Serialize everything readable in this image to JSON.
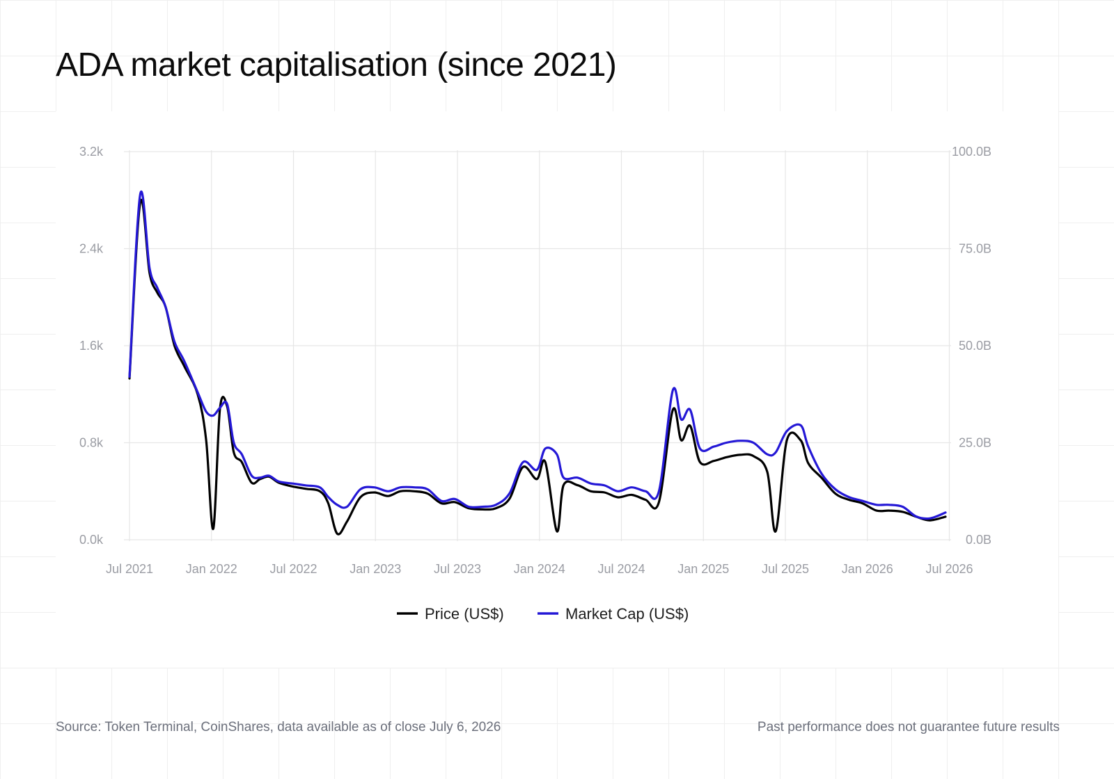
{
  "title": "ADA market capitalisation (since 2021)",
  "footer": {
    "source": "Source: Token Terminal, CoinShares, data available as of close July 6, 2026",
    "disclaimer": "Past performance does not guarantee future results"
  },
  "chart_data": {
    "type": "line",
    "x_tick_labels": [
      "Jul 2021",
      "Jan 2022",
      "Jul 2022",
      "Jan 2023",
      "Jul 2023",
      "Jan 2024",
      "Jul 2024",
      "Jan 2025",
      "Jul 2025",
      "Jan 2026",
      "Jul 2026"
    ],
    "x_range": [
      "2021-07-01",
      "2026-07-06"
    ],
    "y_left": {
      "ticks": [
        "0.0k",
        "0.8k",
        "1.6k",
        "2.4k",
        "3.2k"
      ],
      "range": [
        0,
        3200
      ]
    },
    "y_right": {
      "ticks": [
        "0.0B",
        "25.0B",
        "50.0B",
        "75.0B",
        "100.0B"
      ],
      "range": [
        0,
        100
      ]
    },
    "grid": true,
    "legend_position": "bottom-center",
    "series": [
      {
        "name": "Price (US$)",
        "axis": "left",
        "color": "#000000",
        "points": [
          [
            "2021-07-01",
            1330
          ],
          [
            "2021-07-25",
            2780
          ],
          [
            "2021-08-15",
            2200
          ],
          [
            "2021-09-01",
            2040
          ],
          [
            "2021-09-20",
            1920
          ],
          [
            "2021-10-10",
            1600
          ],
          [
            "2021-11-01",
            1430
          ],
          [
            "2021-12-01",
            1200
          ],
          [
            "2021-12-20",
            820
          ],
          [
            "2022-01-05",
            90
          ],
          [
            "2022-01-20",
            1080
          ],
          [
            "2022-02-05",
            1100
          ],
          [
            "2022-02-20",
            720
          ],
          [
            "2022-03-10",
            640
          ],
          [
            "2022-04-01",
            470
          ],
          [
            "2022-04-20",
            500
          ],
          [
            "2022-05-10",
            520
          ],
          [
            "2022-06-01",
            470
          ],
          [
            "2022-07-01",
            440
          ],
          [
            "2022-08-01",
            420
          ],
          [
            "2022-09-01",
            400
          ],
          [
            "2022-09-20",
            300
          ],
          [
            "2022-10-10",
            50
          ],
          [
            "2022-11-01",
            150
          ],
          [
            "2022-12-01",
            350
          ],
          [
            "2023-01-01",
            390
          ],
          [
            "2023-02-01",
            360
          ],
          [
            "2023-03-01",
            400
          ],
          [
            "2023-04-01",
            400
          ],
          [
            "2023-05-01",
            380
          ],
          [
            "2023-06-01",
            300
          ],
          [
            "2023-07-01",
            310
          ],
          [
            "2023-08-01",
            260
          ],
          [
            "2023-09-01",
            250
          ],
          [
            "2023-10-01",
            260
          ],
          [
            "2023-11-01",
            340
          ],
          [
            "2023-12-01",
            600
          ],
          [
            "2024-01-01",
            500
          ],
          [
            "2024-01-20",
            640
          ],
          [
            "2024-02-15",
            70
          ],
          [
            "2024-03-01",
            450
          ],
          [
            "2024-04-01",
            450
          ],
          [
            "2024-05-01",
            400
          ],
          [
            "2024-06-01",
            390
          ],
          [
            "2024-07-01",
            350
          ],
          [
            "2024-08-01",
            370
          ],
          [
            "2024-09-01",
            330
          ],
          [
            "2024-10-01",
            310
          ],
          [
            "2024-11-01",
            1070
          ],
          [
            "2024-11-20",
            820
          ],
          [
            "2024-12-10",
            940
          ],
          [
            "2025-01-01",
            640
          ],
          [
            "2025-02-01",
            650
          ],
          [
            "2025-03-01",
            680
          ],
          [
            "2025-04-01",
            700
          ],
          [
            "2025-05-01",
            690
          ],
          [
            "2025-06-01",
            560
          ],
          [
            "2025-06-20",
            70
          ],
          [
            "2025-07-15",
            820
          ],
          [
            "2025-08-15",
            820
          ],
          [
            "2025-09-01",
            630
          ],
          [
            "2025-10-01",
            510
          ],
          [
            "2025-11-01",
            380
          ],
          [
            "2025-12-01",
            330
          ],
          [
            "2026-01-01",
            300
          ],
          [
            "2026-02-01",
            240
          ],
          [
            "2026-03-01",
            240
          ],
          [
            "2026-04-01",
            230
          ],
          [
            "2026-05-01",
            190
          ],
          [
            "2026-06-01",
            160
          ],
          [
            "2026-07-06",
            190
          ]
        ]
      },
      {
        "name": "Market Cap (US$)",
        "axis": "right",
        "color": "#2418d6",
        "points": [
          [
            "2021-07-01",
            42
          ],
          [
            "2021-07-25",
            89
          ],
          [
            "2021-08-15",
            70
          ],
          [
            "2021-09-01",
            65
          ],
          [
            "2021-09-20",
            60
          ],
          [
            "2021-10-10",
            51
          ],
          [
            "2021-11-01",
            46
          ],
          [
            "2021-12-01",
            38
          ],
          [
            "2021-12-20",
            33
          ],
          [
            "2022-01-05",
            32
          ],
          [
            "2022-01-20",
            34
          ],
          [
            "2022-02-05",
            35
          ],
          [
            "2022-02-20",
            25
          ],
          [
            "2022-03-10",
            22
          ],
          [
            "2022-04-01",
            16.5
          ],
          [
            "2022-04-20",
            16
          ],
          [
            "2022-05-10",
            16.5
          ],
          [
            "2022-06-01",
            15
          ],
          [
            "2022-07-01",
            14.5
          ],
          [
            "2022-08-01",
            14
          ],
          [
            "2022-09-01",
            13.5
          ],
          [
            "2022-09-20",
            11
          ],
          [
            "2022-10-10",
            9
          ],
          [
            "2022-11-01",
            8.5
          ],
          [
            "2022-12-01",
            13
          ],
          [
            "2023-01-01",
            13.5
          ],
          [
            "2023-02-01",
            12.5
          ],
          [
            "2023-03-01",
            13.5
          ],
          [
            "2023-04-01",
            13.5
          ],
          [
            "2023-05-01",
            13
          ],
          [
            "2023-06-01",
            10
          ],
          [
            "2023-07-01",
            10.5
          ],
          [
            "2023-08-01",
            8.5
          ],
          [
            "2023-09-01",
            8.5
          ],
          [
            "2023-10-01",
            9
          ],
          [
            "2023-11-01",
            12
          ],
          [
            "2023-12-01",
            20
          ],
          [
            "2024-01-01",
            18
          ],
          [
            "2024-01-20",
            23.5
          ],
          [
            "2024-02-15",
            22
          ],
          [
            "2024-03-01",
            16
          ],
          [
            "2024-04-01",
            16
          ],
          [
            "2024-05-01",
            14.5
          ],
          [
            "2024-06-01",
            14
          ],
          [
            "2024-07-01",
            12.5
          ],
          [
            "2024-08-01",
            13.5
          ],
          [
            "2024-09-01",
            12.5
          ],
          [
            "2024-10-01",
            12.5
          ],
          [
            "2024-11-01",
            38.5
          ],
          [
            "2024-11-20",
            31
          ],
          [
            "2024-12-10",
            33.5
          ],
          [
            "2025-01-01",
            23.5
          ],
          [
            "2025-02-01",
            24
          ],
          [
            "2025-03-01",
            25
          ],
          [
            "2025-04-01",
            25.5
          ],
          [
            "2025-05-01",
            25
          ],
          [
            "2025-06-01",
            22
          ],
          [
            "2025-06-20",
            22.5
          ],
          [
            "2025-07-15",
            28
          ],
          [
            "2025-08-15",
            29.5
          ],
          [
            "2025-09-01",
            24
          ],
          [
            "2025-10-01",
            17
          ],
          [
            "2025-11-01",
            13
          ],
          [
            "2025-12-01",
            11
          ],
          [
            "2026-01-01",
            10
          ],
          [
            "2026-02-01",
            9
          ],
          [
            "2026-03-01",
            9
          ],
          [
            "2026-04-01",
            8.5
          ],
          [
            "2026-05-01",
            6
          ],
          [
            "2026-06-01",
            5.5
          ],
          [
            "2026-07-06",
            7
          ]
        ]
      }
    ]
  }
}
